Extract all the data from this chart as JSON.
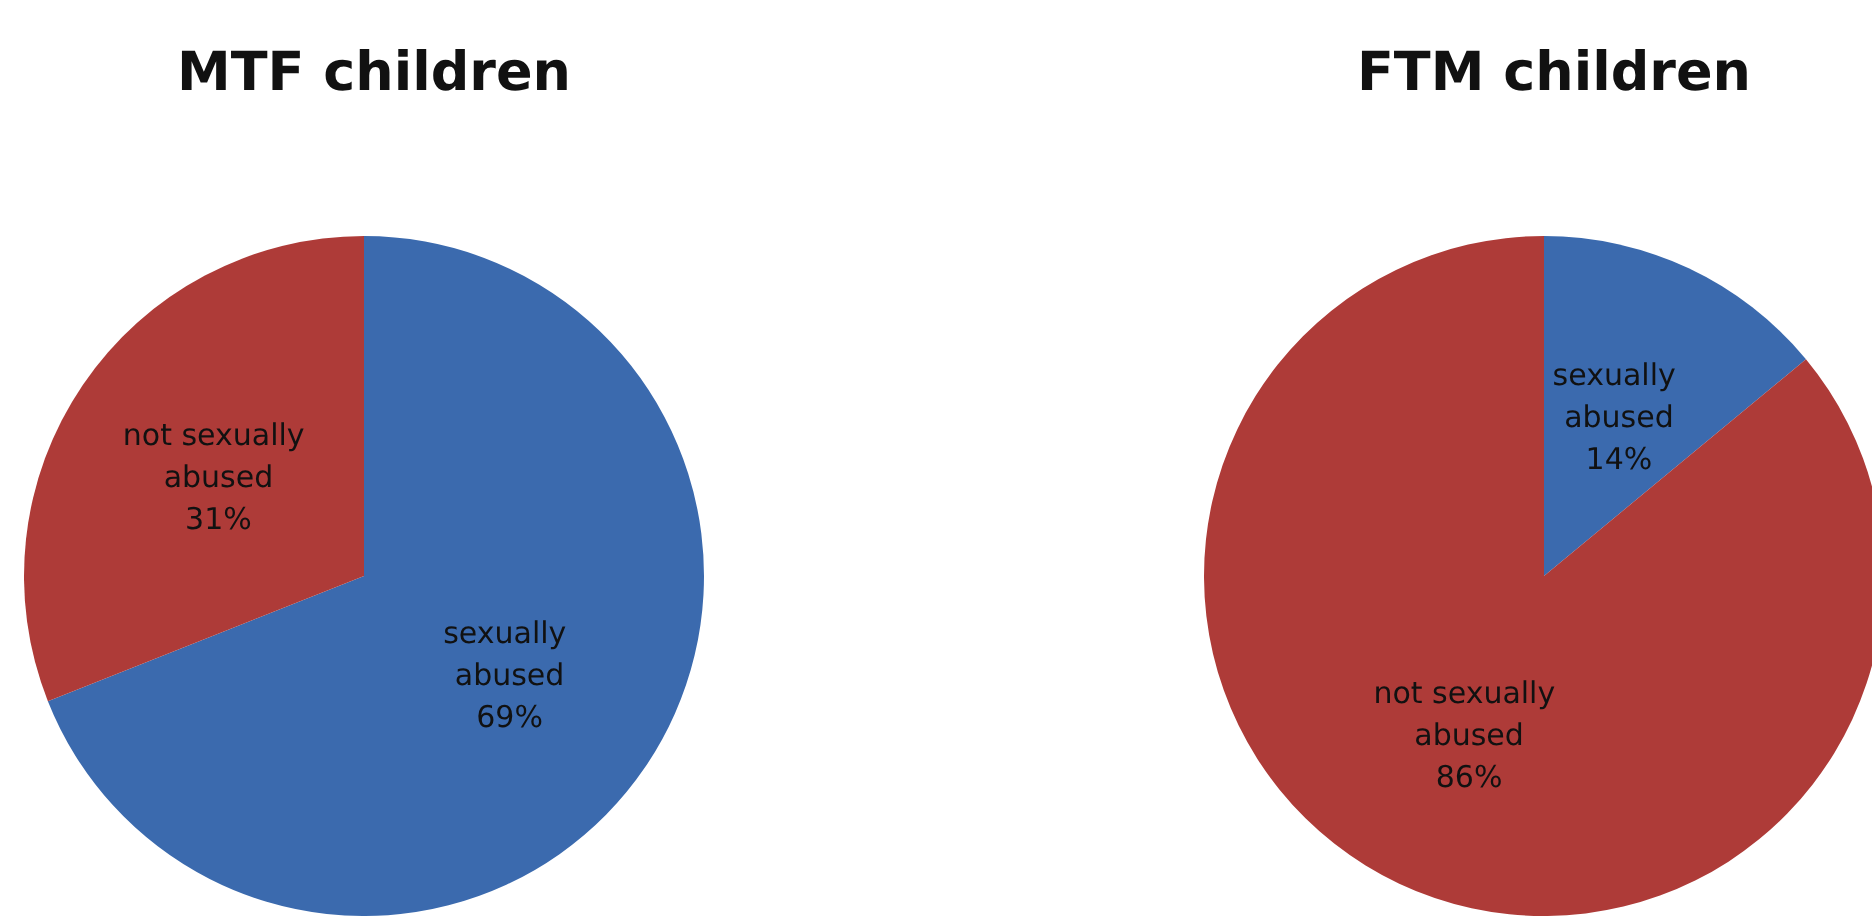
{
  "chart_data": [
    {
      "type": "pie",
      "title": "MTF children",
      "categories": [
        "sexually abused",
        "not sexually abused"
      ],
      "values": [
        69,
        31
      ],
      "colors": [
        "#3b6aae",
        "#ae3b38"
      ],
      "value_labels": [
        "69%",
        "31%"
      ]
    },
    {
      "type": "pie",
      "title": "FTM children",
      "categories": [
        "sexually abused",
        "not sexually abused"
      ],
      "values": [
        14,
        86
      ],
      "colors": [
        "#3b6aae",
        "#ae3b38"
      ],
      "value_labels": [
        "14%",
        "86%"
      ]
    }
  ]
}
